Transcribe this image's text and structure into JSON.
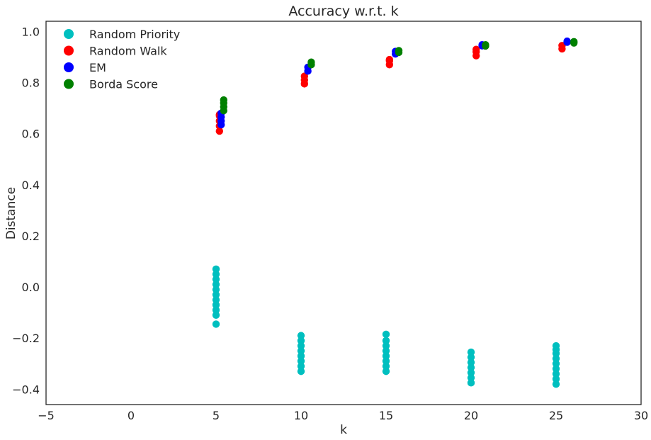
{
  "chart_data": {
    "type": "scatter",
    "title": "Accuracy w.r.t. k",
    "xlabel": "k",
    "ylabel": "Distance",
    "xlim": [
      -5,
      30
    ],
    "ylim": [
      -0.46,
      1.04
    ],
    "xticks": [
      -5,
      0,
      5,
      10,
      15,
      20,
      25,
      30
    ],
    "yticks": [
      -0.4,
      -0.2,
      0.0,
      0.2,
      0.4,
      0.6,
      0.8,
      1.0
    ],
    "xtick_labels": [
      "−5",
      "0",
      "5",
      "10",
      "15",
      "20",
      "25",
      "30"
    ],
    "ytick_labels": [
      "−0.4",
      "−0.2",
      "0.0",
      "0.2",
      "0.4",
      "0.6",
      "0.8",
      "1.0"
    ],
    "grid": false,
    "legend_position": "top-left",
    "series": [
      {
        "name": "Random Priority",
        "color": "#00bfbf",
        "points": [
          [
            5.0,
            -0.145
          ],
          [
            5.0,
            -0.11
          ],
          [
            5.0,
            -0.09
          ],
          [
            5.0,
            -0.07
          ],
          [
            5.0,
            -0.05
          ],
          [
            5.0,
            -0.03
          ],
          [
            5.0,
            -0.01
          ],
          [
            5.0,
            0.01
          ],
          [
            5.0,
            0.03
          ],
          [
            5.0,
            0.05
          ],
          [
            5.0,
            0.07
          ],
          [
            10.0,
            -0.33
          ],
          [
            10.0,
            -0.31
          ],
          [
            10.0,
            -0.29
          ],
          [
            10.0,
            -0.27
          ],
          [
            10.0,
            -0.25
          ],
          [
            10.0,
            -0.23
          ],
          [
            10.0,
            -0.21
          ],
          [
            10.0,
            -0.19
          ],
          [
            15.0,
            -0.33
          ],
          [
            15.0,
            -0.31
          ],
          [
            15.0,
            -0.29
          ],
          [
            15.0,
            -0.27
          ],
          [
            15.0,
            -0.25
          ],
          [
            15.0,
            -0.23
          ],
          [
            15.0,
            -0.21
          ],
          [
            15.0,
            -0.185
          ],
          [
            20.0,
            -0.375
          ],
          [
            20.0,
            -0.355
          ],
          [
            20.0,
            -0.335
          ],
          [
            20.0,
            -0.315
          ],
          [
            20.0,
            -0.295
          ],
          [
            20.0,
            -0.275
          ],
          [
            20.0,
            -0.255
          ],
          [
            25.0,
            -0.38
          ],
          [
            25.0,
            -0.36
          ],
          [
            25.0,
            -0.34
          ],
          [
            25.0,
            -0.32
          ],
          [
            25.0,
            -0.3
          ],
          [
            25.0,
            -0.28
          ],
          [
            25.0,
            -0.26
          ],
          [
            25.0,
            -0.245
          ],
          [
            25.0,
            -0.23
          ]
        ]
      },
      {
        "name": "Random Walk",
        "color": "#ff0000",
        "points": [
          [
            5.2,
            0.61
          ],
          [
            5.2,
            0.63
          ],
          [
            5.2,
            0.65
          ],
          [
            5.2,
            0.67
          ],
          [
            5.2,
            0.675
          ],
          [
            10.2,
            0.795
          ],
          [
            10.2,
            0.81
          ],
          [
            10.2,
            0.825
          ],
          [
            15.2,
            0.87
          ],
          [
            15.2,
            0.885
          ],
          [
            15.2,
            0.89
          ],
          [
            20.3,
            0.905
          ],
          [
            20.3,
            0.92
          ],
          [
            20.3,
            0.93
          ],
          [
            25.35,
            0.932
          ],
          [
            25.35,
            0.945
          ]
        ]
      },
      {
        "name": "EM",
        "color": "#0000ff",
        "points": [
          [
            5.3,
            0.635
          ],
          [
            5.3,
            0.65
          ],
          [
            5.3,
            0.665
          ],
          [
            5.3,
            0.68
          ],
          [
            10.4,
            0.845
          ],
          [
            10.4,
            0.86
          ],
          [
            15.55,
            0.912
          ],
          [
            15.55,
            0.922
          ],
          [
            20.65,
            0.944
          ],
          [
            20.65,
            0.948
          ],
          [
            25.65,
            0.958
          ],
          [
            25.65,
            0.962
          ]
        ]
      },
      {
        "name": "Borda Score",
        "color": "#008000",
        "points": [
          [
            5.45,
            0.69
          ],
          [
            5.45,
            0.705
          ],
          [
            5.45,
            0.72
          ],
          [
            5.45,
            0.732
          ],
          [
            10.6,
            0.87
          ],
          [
            10.6,
            0.88
          ],
          [
            15.75,
            0.918
          ],
          [
            15.75,
            0.925
          ],
          [
            20.85,
            0.943
          ],
          [
            20.85,
            0.948
          ],
          [
            26.05,
            0.955
          ],
          [
            26.05,
            0.96
          ]
        ]
      }
    ]
  }
}
